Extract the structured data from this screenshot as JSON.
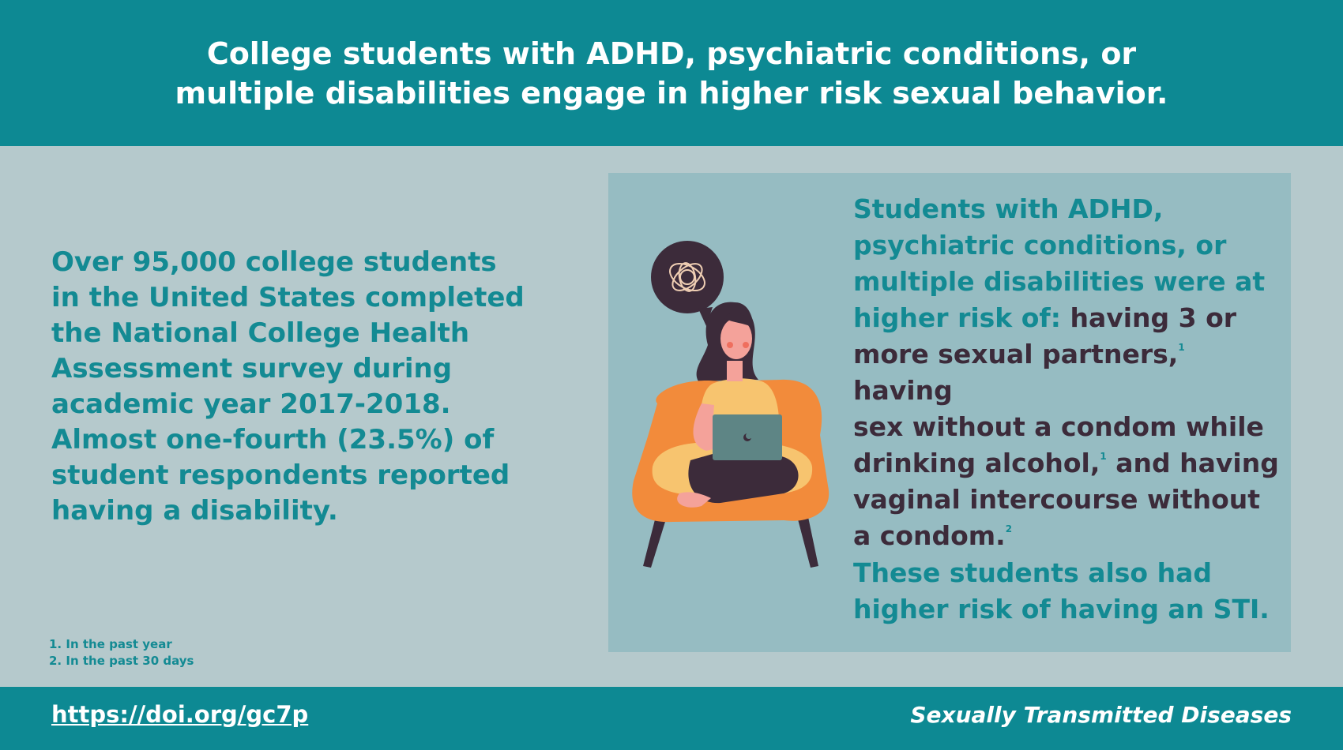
{
  "header": {
    "title_line1": "College students with ADHD, psychiatric conditions, or",
    "title_line2": "multiple disabilities engage in higher risk sexual behavior."
  },
  "left": {
    "lines": [
      "Over 95,000 college students",
      "in the United States completed",
      "the National College Health",
      "Assessment survey during",
      "academic year 2017-2018.",
      "Almost one-fourth (23.5%) of",
      "student respondents reported",
      "having a disability."
    ]
  },
  "footnotes": [
    "1. In the past year",
    "2. In the past 30 days"
  ],
  "right": {
    "line1": "Students with ADHD,",
    "line2": "psychiatric conditions, or",
    "line3": "multiple disabilities were at",
    "line4_teal": "higher risk of:",
    "line4_dark": "having 3 or",
    "line5": "more sexual partners,",
    "line5_sup": "1",
    "line5b": "having",
    "line6": "sex without a condom while",
    "line7": "drinking alcohol,",
    "line7_sup": "1",
    "line7b": "and having",
    "line8": "vaginal intercourse without",
    "line9": "a condom.",
    "line9_sup": "2",
    "extra_line1": "These students also had",
    "extra_line2": "higher risk of having an STI."
  },
  "footer": {
    "doi": "https://doi.org/gc7p",
    "journal": "Sexually Transmitted Diseases"
  },
  "colors": {
    "teal": "#0d8993",
    "text_teal": "#138a93",
    "dark": "#3c2b3a",
    "background": "#b5c9cc",
    "panel": "#96bcc2"
  }
}
